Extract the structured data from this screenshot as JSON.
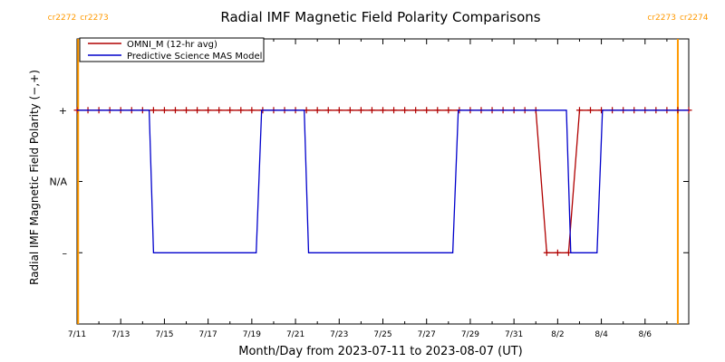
{
  "chart_data": {
    "type": "line",
    "title": "Radial IMF Magnetic Field Polarity Comparisons",
    "xlabel": "Month/Day from 2023-07-11 to 2023-08-07 (UT)",
    "ylabel": "Radial IMF Magnetic Field Polarity (−,+)",
    "x_range_days": [
      0,
      28
    ],
    "y_range": [
      -2,
      2
    ],
    "x_ticks": [
      {
        "day": 0,
        "label": "7/11"
      },
      {
        "day": 2,
        "label": "7/13"
      },
      {
        "day": 4,
        "label": "7/15"
      },
      {
        "day": 6,
        "label": "7/17"
      },
      {
        "day": 8,
        "label": "7/19"
      },
      {
        "day": 10,
        "label": "7/21"
      },
      {
        "day": 12,
        "label": "7/23"
      },
      {
        "day": 14,
        "label": "7/25"
      },
      {
        "day": 16,
        "label": "7/27"
      },
      {
        "day": 18,
        "label": "7/29"
      },
      {
        "day": 20,
        "label": "7/31"
      },
      {
        "day": 22,
        "label": "8/2"
      },
      {
        "day": 24,
        "label": "8/4"
      },
      {
        "day": 26,
        "label": "8/6"
      }
    ],
    "y_ticks": [
      {
        "value": 1,
        "label": "+"
      },
      {
        "value": 0,
        "label": "N/A"
      },
      {
        "value": -1,
        "label": "–"
      }
    ],
    "carrington_markers": [
      {
        "day": 0.05,
        "left": "cr2272",
        "right": "cr2273",
        "color": "#ff9900"
      },
      {
        "day": 27.5,
        "left": "cr2273",
        "right": "cr2274",
        "color": "#ff9900"
      }
    ],
    "legend": {
      "placement": "top-left"
    },
    "series": [
      {
        "name": "OMNI_M (12-hr avg)",
        "color": "#b00000",
        "marker": "plus",
        "points": [
          [
            0.0,
            1
          ],
          [
            0.5,
            1
          ],
          [
            1.0,
            1
          ],
          [
            1.5,
            1
          ],
          [
            2.0,
            1
          ],
          [
            2.5,
            1
          ],
          [
            3.0,
            1
          ],
          [
            3.5,
            1
          ],
          [
            4.0,
            1
          ],
          [
            4.5,
            1
          ],
          [
            5.0,
            1
          ],
          [
            5.5,
            1
          ],
          [
            6.0,
            1
          ],
          [
            6.5,
            1
          ],
          [
            7.0,
            1
          ],
          [
            7.5,
            1
          ],
          [
            8.0,
            1
          ],
          [
            8.5,
            1
          ],
          [
            9.0,
            1
          ],
          [
            9.5,
            1
          ],
          [
            10.0,
            1
          ],
          [
            10.5,
            1
          ],
          [
            11.0,
            1
          ],
          [
            11.5,
            1
          ],
          [
            12.0,
            1
          ],
          [
            12.5,
            1
          ],
          [
            13.0,
            1
          ],
          [
            13.5,
            1
          ],
          [
            14.0,
            1
          ],
          [
            14.5,
            1
          ],
          [
            15.0,
            1
          ],
          [
            15.5,
            1
          ],
          [
            16.0,
            1
          ],
          [
            16.5,
            1
          ],
          [
            17.0,
            1
          ],
          [
            17.5,
            1
          ],
          [
            18.0,
            1
          ],
          [
            18.5,
            1
          ],
          [
            19.0,
            1
          ],
          [
            19.5,
            1
          ],
          [
            20.0,
            1
          ],
          [
            20.5,
            1
          ],
          [
            21.0,
            1
          ],
          [
            21.5,
            -1
          ],
          [
            22.0,
            -1
          ],
          [
            22.5,
            -1
          ],
          [
            23.0,
            1
          ],
          [
            23.5,
            1
          ],
          [
            24.0,
            1
          ],
          [
            24.5,
            1
          ],
          [
            25.0,
            1
          ],
          [
            25.5,
            1
          ],
          [
            26.0,
            1
          ],
          [
            26.5,
            1
          ],
          [
            27.0,
            1
          ],
          [
            27.5,
            1
          ],
          [
            28.0,
            1
          ]
        ]
      },
      {
        "name": "Predictive Science MAS Model",
        "color": "#0000cc",
        "marker": "none",
        "points": [
          [
            0.0,
            1
          ],
          [
            3.3,
            1
          ],
          [
            3.5,
            -1
          ],
          [
            8.2,
            -1
          ],
          [
            8.45,
            1
          ],
          [
            10.4,
            1
          ],
          [
            10.6,
            -1
          ],
          [
            17.2,
            -1
          ],
          [
            17.45,
            1
          ],
          [
            22.4,
            1
          ],
          [
            22.6,
            -1
          ],
          [
            23.8,
            -1
          ],
          [
            24.05,
            1
          ],
          [
            28.0,
            1
          ]
        ]
      }
    ]
  }
}
